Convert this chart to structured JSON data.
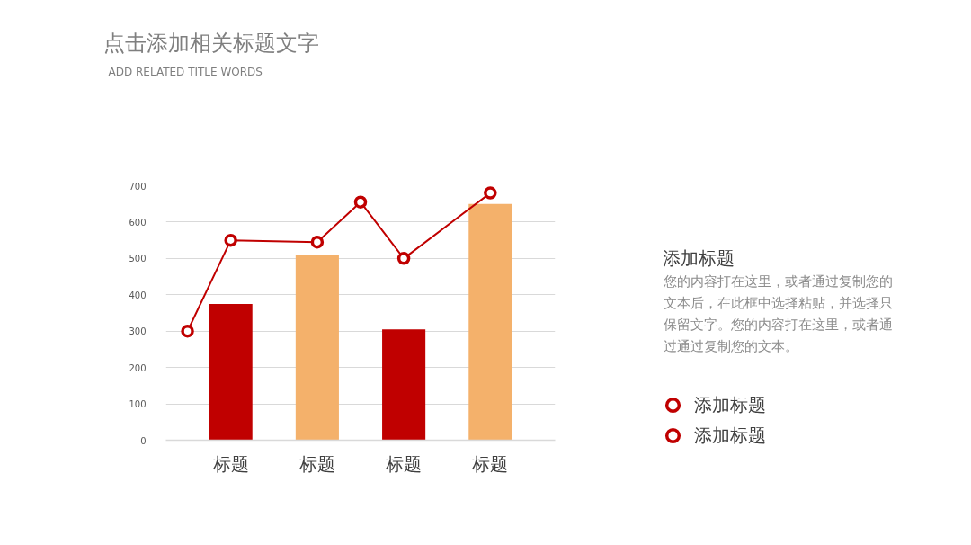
{
  "chart_data": {
    "type": "bar",
    "title": "点击添加相关标题文字",
    "subtitle": "ADD RELATED TITLE WORDS",
    "annotations": [
      "添加标题",
      "您的内容打在这里，或者通过复制您的文本后，在此框中选择粘贴，并选择只保留文字。您的内容打在这里，或者通过通过复制您的文本。"
    ],
    "categories": [
      null,
      "标题",
      null,
      "标题",
      null,
      "标题",
      null,
      "标题",
      null
    ],
    "series": [
      {
        "name": "添加标题",
        "color": "#c00000",
        "colors": [
          null,
          "#c00000",
          null,
          "#f4b16b",
          null,
          "#c00000",
          null,
          "#f4b16b",
          null
        ],
        "values": [
          null,
          375,
          null,
          510,
          null,
          305,
          null,
          650,
          null
        ]
      },
      {
        "name": "添加标题",
        "type": "line",
        "color": "#c00000",
        "values": [
          300,
          550,
          null,
          545,
          655,
          500,
          null,
          680,
          null
        ]
      }
    ],
    "ylim": [
      0,
      700
    ],
    "yticks": [
      0,
      100,
      200,
      300,
      400,
      500,
      600,
      700
    ],
    "grid": "y",
    "marker": "circle",
    "legend": "right"
  }
}
